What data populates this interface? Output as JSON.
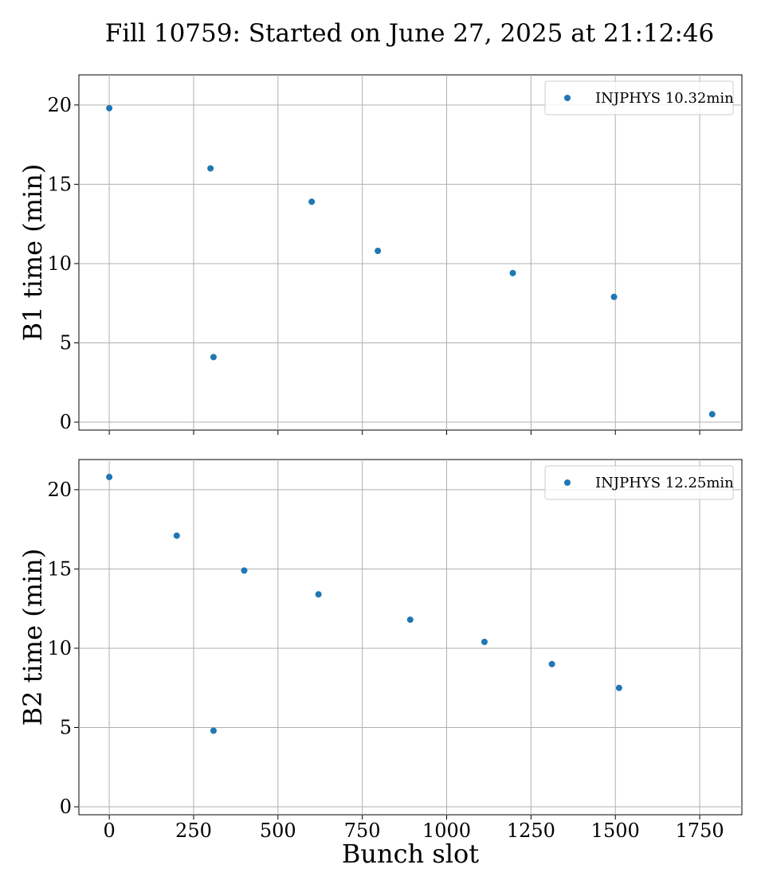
{
  "figure_title": "Fill 10759: Started on June 27, 2025 at 21:12:46",
  "colors": {
    "series": "#1f77b4",
    "grid": "#b0b0b0"
  },
  "chart_data": [
    {
      "type": "scatter",
      "title": "",
      "xlabel": "",
      "ylabel": "B1 time (min)",
      "xlim": [
        -90,
        1875
      ],
      "ylim": [
        -0.5,
        21.9
      ],
      "xticks": [
        0,
        250,
        500,
        750,
        1000,
        1250,
        1500,
        1750
      ],
      "xtick_labels_visible": false,
      "yticks": [
        0,
        5,
        10,
        15,
        20
      ],
      "grid": true,
      "legend_position": "top-right",
      "series": [
        {
          "name": "INJPHYS 10.32min",
          "x": [
            0,
            300,
            309,
            600,
            796,
            1196,
            1496,
            1787
          ],
          "y": [
            19.8,
            16.0,
            4.1,
            13.9,
            10.8,
            9.4,
            7.9,
            0.5
          ]
        }
      ]
    },
    {
      "type": "scatter",
      "title": "",
      "xlabel": "Bunch slot",
      "ylabel": "B2 time (min)",
      "xlim": [
        -90,
        1875
      ],
      "ylim": [
        -0.5,
        21.9
      ],
      "xticks": [
        0,
        250,
        500,
        750,
        1000,
        1250,
        1500,
        1750
      ],
      "xtick_labels_visible": true,
      "yticks": [
        0,
        5,
        10,
        15,
        20
      ],
      "grid": true,
      "legend_position": "top-right",
      "series": [
        {
          "name": "INJPHYS 12.25min",
          "x": [
            0,
            200,
            309,
            400,
            620,
            892,
            1112,
            1312,
            1511
          ],
          "y": [
            20.8,
            17.1,
            4.8,
            14.9,
            13.4,
            11.8,
            10.4,
            9.0,
            7.5
          ]
        }
      ]
    }
  ]
}
